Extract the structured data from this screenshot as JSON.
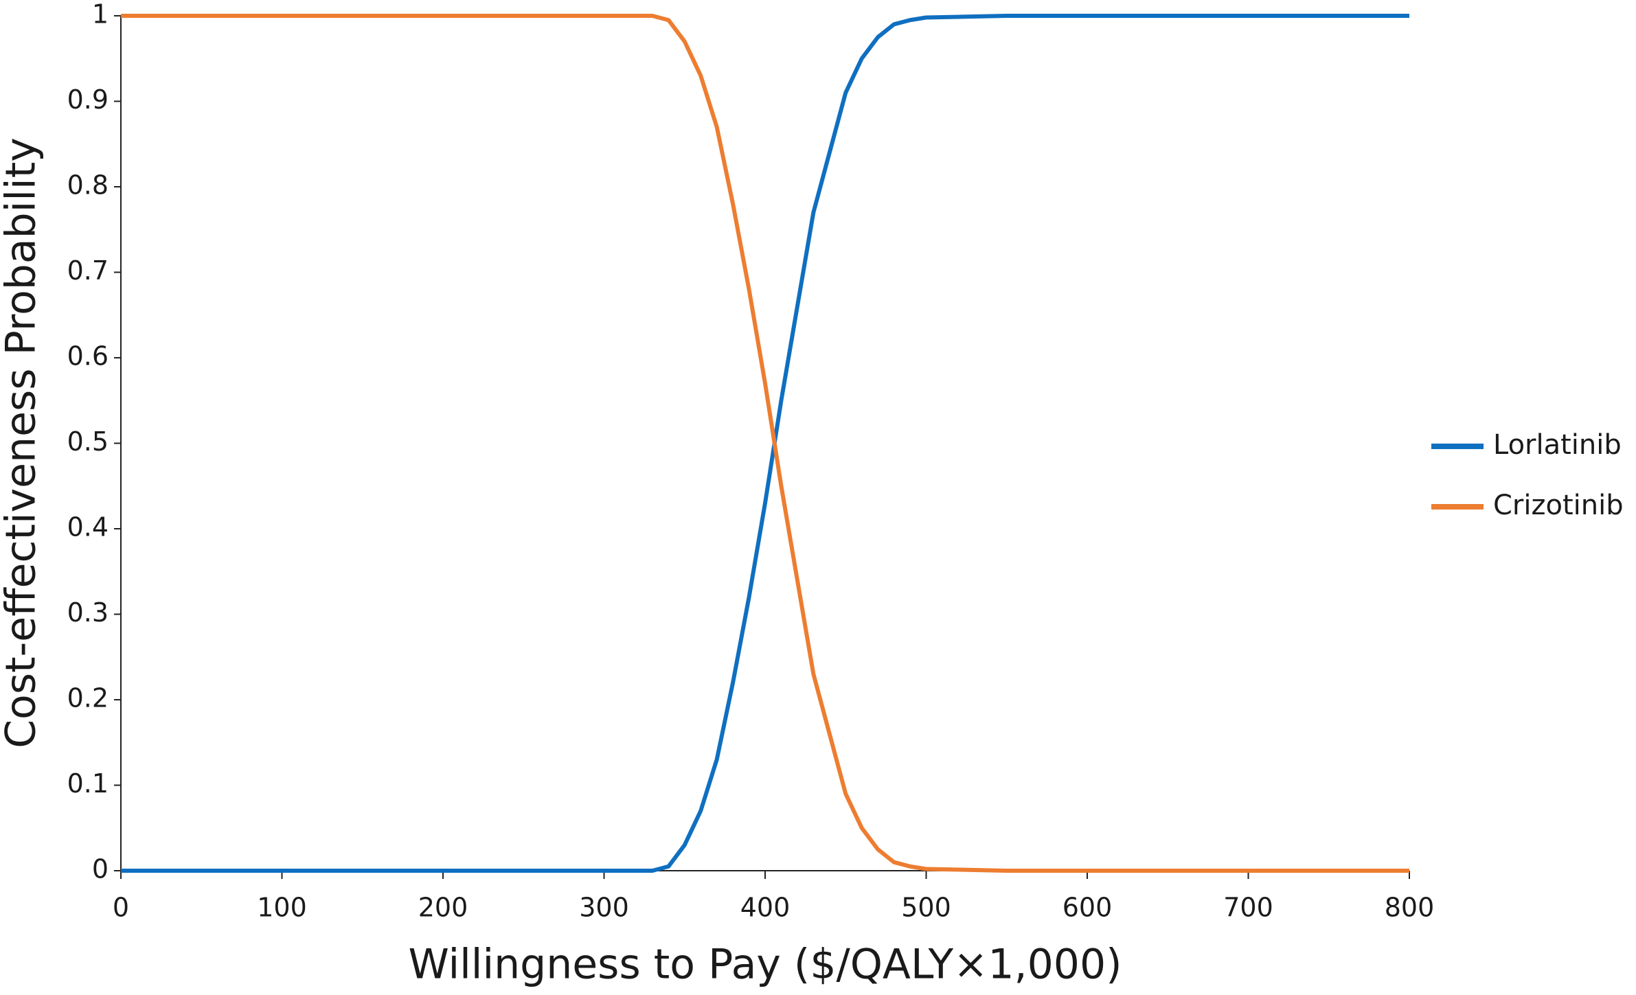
{
  "chart_data": {
    "type": "line",
    "xlabel": "Willingness to Pay ($/QALY×1,000)",
    "ylabel": "Cost-effectiveness Probability",
    "x": [
      0,
      330,
      340,
      350,
      360,
      370,
      380,
      390,
      400,
      410,
      420,
      430,
      440,
      450,
      460,
      470,
      480,
      490,
      500,
      550,
      800
    ],
    "series": [
      {
        "name": "Lorlatinib",
        "color": "#0f6fc0",
        "values": [
          0,
          0,
          0.005,
          0.03,
          0.07,
          0.13,
          0.22,
          0.32,
          0.43,
          0.55,
          0.66,
          0.77,
          0.84,
          0.91,
          0.95,
          0.975,
          0.99,
          0.995,
          0.998,
          1,
          1
        ]
      },
      {
        "name": "Crizotinib",
        "color": "#ed7d31",
        "values": [
          1,
          1,
          0.995,
          0.97,
          0.93,
          0.87,
          0.78,
          0.68,
          0.57,
          0.45,
          0.34,
          0.23,
          0.16,
          0.09,
          0.05,
          0.025,
          0.01,
          0.005,
          0.002,
          0,
          0
        ]
      }
    ],
    "xlim": [
      0,
      800
    ],
    "xticks": [
      0,
      100,
      200,
      300,
      400,
      500,
      600,
      700,
      800
    ],
    "ylim": [
      0,
      1
    ],
    "yticks": [
      0,
      0.1,
      0.2,
      0.3,
      0.4,
      0.5,
      0.6,
      0.7,
      0.8,
      0.9,
      1
    ],
    "legend": "right",
    "grid": false
  }
}
